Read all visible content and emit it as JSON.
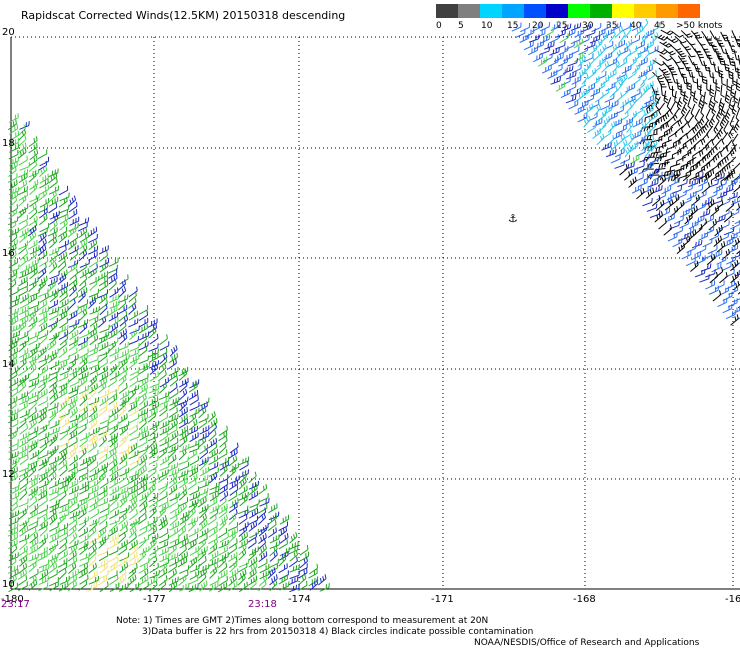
{
  "title": "Rapidscat Corrected Winds(12.5KM) 20150318 descending",
  "legend": {
    "colors": [
      "#404040",
      "#7f7f7f",
      "#00d5ff",
      "#00a5ff",
      "#0050ff",
      "#0000c8",
      "#00ff00",
      "#00b000",
      "#ffff00",
      "#ffcc00",
      "#ff9900",
      "#ff6600",
      "#ff0000",
      "#c80000",
      "#803300",
      "#a05050",
      "#ff00ff",
      "#b000ff",
      "#8000c0",
      "#5000a0",
      "#6600cc"
    ],
    "labels": [
      "0",
      "5",
      "10",
      "15",
      "20",
      "25",
      "30",
      "35",
      "40",
      "45",
      ">50 knots"
    ]
  },
  "axes": {
    "lat_labels": [
      "20",
      "18",
      "16",
      "14",
      "12",
      "10"
    ],
    "lon_labels": [
      "-180",
      "-177",
      "-174",
      "-171",
      "-168",
      "-16"
    ]
  },
  "time_labels": {
    "left": "23:17",
    "center": "23:18"
  },
  "notes": {
    "line1": "Note: 1) Times are GMT 2)Times along bottom correspond to measurement at 20N",
    "line2": "3)Data buffer is 22 hrs from 20150318 4) Black circles indicate possible contamination"
  },
  "credit": "NOAA/NESDIS/Office of Research and Applications",
  "colors": {
    "light_green": "#4ed34e",
    "green": "#1fa71f",
    "dark_blue": "#1c2bbd",
    "blue": "#2f6ff0",
    "cyan": "#2fc8ea",
    "black": "#000000",
    "yellow": "#f2e27a",
    "grid": "#000000"
  }
}
